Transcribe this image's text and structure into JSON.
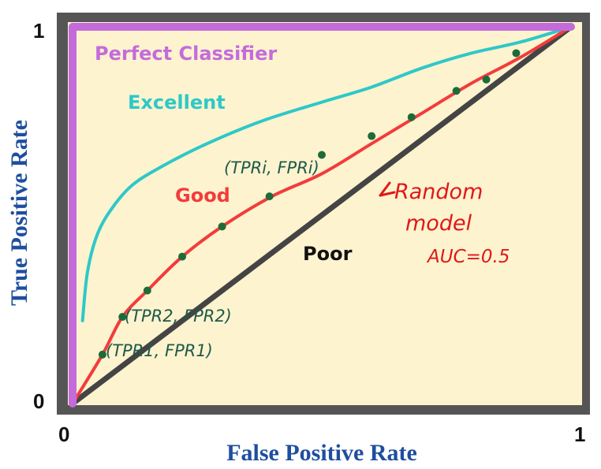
{
  "chart_data": {
    "type": "line",
    "title": "",
    "xlabel": "False Positive Rate",
    "ylabel": "True Positive Rate",
    "xlim": [
      0,
      1
    ],
    "ylim": [
      0,
      1
    ],
    "x_ticks": [
      "0",
      "1"
    ],
    "y_ticks": [
      "0",
      "1"
    ],
    "grid": false,
    "colors": {
      "frame": "#555555",
      "plot_bg": "#fdf3cf",
      "perfect": "#c46bdc",
      "excellent": "#2ec8c8",
      "good": "#f23c3c",
      "poor": "#444444",
      "points": "#1e6b3a",
      "annotation_ink": "#1e5a4a",
      "random_ink": "#e01818",
      "axis_title": "#1f4e9e"
    },
    "series": [
      {
        "name": "Perfect Classifier",
        "points": [
          [
            0,
            0
          ],
          [
            0,
            1
          ],
          [
            1,
            1
          ]
        ]
      },
      {
        "name": "Excellent",
        "points": [
          [
            0.02,
            0.22
          ],
          [
            0.03,
            0.35
          ],
          [
            0.05,
            0.45
          ],
          [
            0.08,
            0.52
          ],
          [
            0.12,
            0.58
          ],
          [
            0.18,
            0.63
          ],
          [
            0.27,
            0.69
          ],
          [
            0.38,
            0.75
          ],
          [
            0.5,
            0.8
          ],
          [
            0.6,
            0.84
          ],
          [
            0.7,
            0.89
          ],
          [
            0.8,
            0.93
          ],
          [
            0.9,
            0.96
          ],
          [
            1.0,
            1.0
          ]
        ]
      },
      {
        "name": "Good",
        "points": [
          [
            0.0,
            0.0
          ],
          [
            0.06,
            0.13
          ],
          [
            0.1,
            0.23
          ],
          [
            0.15,
            0.3
          ],
          [
            0.22,
            0.39
          ],
          [
            0.3,
            0.47
          ],
          [
            0.4,
            0.55
          ],
          [
            0.5,
            0.61
          ],
          [
            0.6,
            0.69
          ],
          [
            0.7,
            0.77
          ],
          [
            0.8,
            0.85
          ],
          [
            0.9,
            0.92
          ],
          [
            1.0,
            1.0
          ]
        ]
      },
      {
        "name": "Poor",
        "points": [
          [
            0,
            0
          ],
          [
            1,
            1
          ]
        ]
      }
    ],
    "good_points": [
      [
        0.06,
        0.13
      ],
      [
        0.1,
        0.23
      ],
      [
        0.15,
        0.3
      ],
      [
        0.22,
        0.39
      ],
      [
        0.3,
        0.47
      ],
      [
        0.395,
        0.55
      ],
      [
        0.5,
        0.66
      ],
      [
        0.6,
        0.71
      ],
      [
        0.68,
        0.76
      ],
      [
        0.77,
        0.83
      ],
      [
        0.83,
        0.86
      ],
      [
        0.89,
        0.93
      ]
    ],
    "annotations": {
      "tpr1": "(TPR1, FPR1)",
      "tpr2": "(TPR2, FPR2)",
      "tpr_i": "(TPRi, FPRi)",
      "random_line1": "Random",
      "random_line2": "model",
      "random_line3": "AUC=0.5"
    }
  }
}
